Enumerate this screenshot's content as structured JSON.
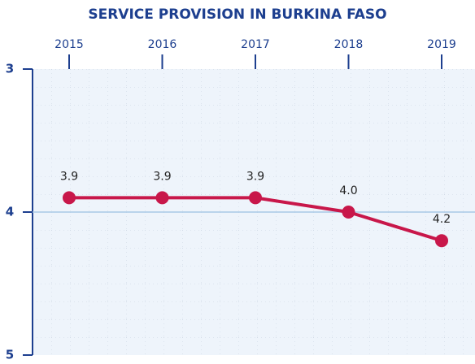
{
  "chart_data": {
    "type": "line",
    "title": "SERVICE PROVISION IN BURKINA FASO",
    "categories": [
      "2015",
      "2016",
      "2017",
      "2018",
      "2019"
    ],
    "series": [
      {
        "color": "#c8174a",
        "values": [
          3.9,
          3.9,
          3.9,
          4.0,
          4.2
        ],
        "value_labels": [
          "3.9",
          "3.9",
          "3.9",
          "4.0",
          "4.2"
        ]
      }
    ],
    "ylim": [
      3,
      5
    ],
    "yticks": [
      3,
      4,
      5
    ],
    "y_inverted": true,
    "grid": true
  }
}
